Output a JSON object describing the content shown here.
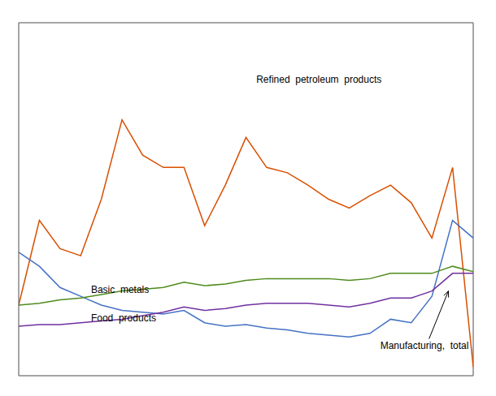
{
  "chart_data": {
    "type": "line",
    "x": [
      2000,
      2001,
      2002,
      2003,
      2004,
      2005,
      2006,
      2007,
      2008,
      2009,
      2010,
      2011,
      2012,
      2013,
      2014,
      2015,
      2016,
      2017,
      2018,
      2019,
      2020,
      2021,
      2022
    ],
    "xlim": [
      2000,
      2022
    ],
    "xticks": [
      2000,
      2004,
      2008,
      2012,
      2016,
      2020
    ],
    "ylim": [
      60,
      260
    ],
    "yticks": [
      80,
      120,
      160,
      200,
      240
    ],
    "grid": true,
    "tick_labels": false,
    "series": [
      {
        "name": "Refined  petroleum  products",
        "color": "#d94f00",
        "values": [
          100,
          148,
          132,
          128,
          160,
          205,
          185,
          178,
          178,
          145,
          168,
          195,
          178,
          175,
          168,
          160,
          155,
          162,
          168,
          158,
          138,
          178,
          65
        ]
      },
      {
        "name": "Basic  metals",
        "color": "#4472c4",
        "values": [
          130,
          122,
          110,
          105,
          100,
          97,
          96,
          95,
          97,
          90,
          88,
          89,
          87,
          86,
          84,
          83,
          82,
          84,
          92,
          90,
          105,
          148,
          138
        ]
      },
      {
        "name": "Food  products",
        "color": "#4e8b1d",
        "values": [
          100,
          101,
          103,
          104,
          106,
          108,
          109,
          110,
          113,
          111,
          112,
          114,
          115,
          115,
          115,
          115,
          114,
          115,
          118,
          118,
          118,
          122,
          119
        ]
      },
      {
        "name": "Manufacturing,  total",
        "color": "#7030a0",
        "values": [
          88,
          89,
          89,
          90,
          91,
          92,
          94,
          96,
          99,
          97,
          98,
          100,
          101,
          101,
          101,
          100,
          99,
          101,
          104,
          104,
          108,
          118,
          118
        ]
      }
    ],
    "annotations": [
      {
        "text": "Refined  petroleum  products",
        "x": 2011.5,
        "y": 225
      },
      {
        "text": "Basic  metals",
        "x": 2003.5,
        "y": 106
      },
      {
        "text": "Food  products",
        "x": 2003.5,
        "y": 90
      },
      {
        "text": "Manufacturing,  total",
        "x": 2017.5,
        "y": 80,
        "arrow": {
          "x": 2020.8,
          "y": 108
        }
      }
    ]
  }
}
